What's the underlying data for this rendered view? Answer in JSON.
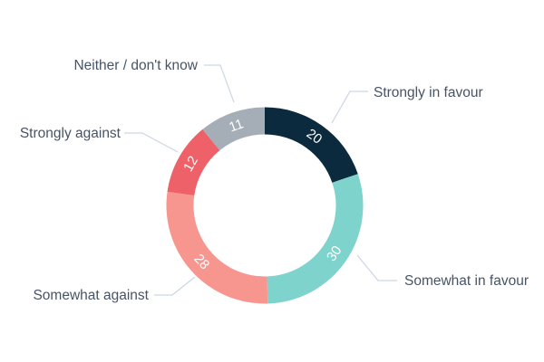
{
  "chart_data": {
    "type": "pie",
    "subtype": "donut",
    "title": "",
    "start_angle_deg": 0,
    "direction": "clockwise",
    "segments": [
      {
        "label": "Strongly in favour",
        "value": 20,
        "color": "#0b2a3e"
      },
      {
        "label": "Somewhat in favour",
        "value": 30,
        "color": "#7ed3cd"
      },
      {
        "label": "Somewhat against",
        "value": 28,
        "color": "#f7968f"
      },
      {
        "label": "Strongly against",
        "value": 12,
        "color": "#ee6168"
      },
      {
        "label": "Neither / don't know",
        "value": 11,
        "color": "#a5aeb6"
      }
    ],
    "value_label_color": "#ffffff",
    "category_label_color": "#475466",
    "leader_line_color": "#ccd7e3",
    "background_color": "#ffffff",
    "legend": "none"
  }
}
